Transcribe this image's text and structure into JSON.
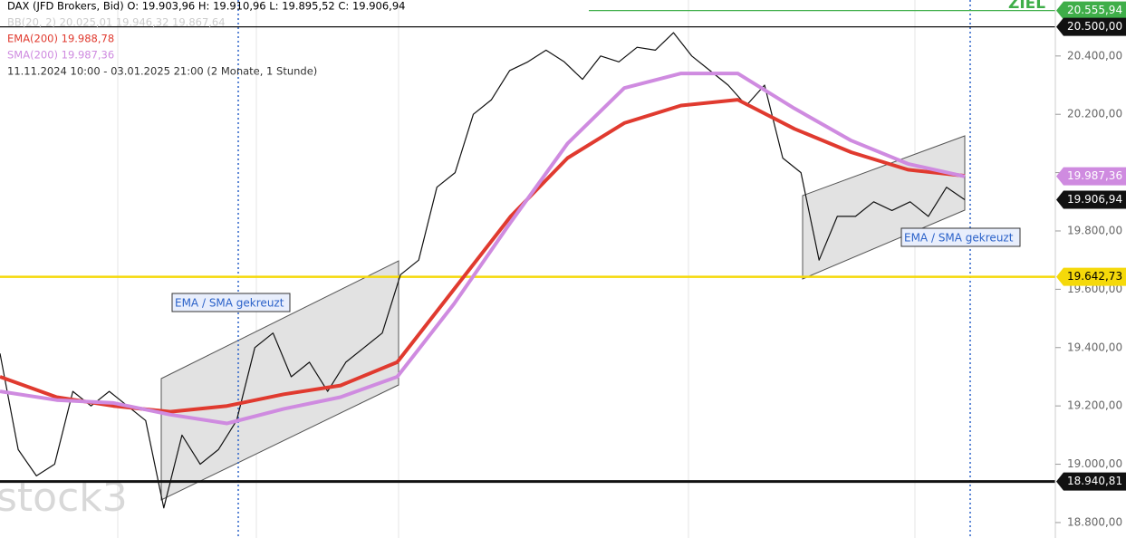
{
  "chart_data": {
    "type": "line",
    "header": {
      "instrument": "DAX (JFD Brokers, Bid)  O: 19.903,96  H: 19.910,96  L: 19.895,52  C: 19.906,94",
      "bb": "BB(20, 2)  20.025,01  19.946,32  19.867,64",
      "ema": "EMA(200)  19.988,78",
      "sma": "SMA(200)  19.987,36",
      "period": "11.11.2024 10:00 - 03.01.2025 21:00   (2 Monate, 1 Stunde)"
    },
    "annotations": [
      "EMA / SMA gekreuzt",
      "EMA / SMA gekreuzt",
      "ZIEL"
    ],
    "watermark": "stock3",
    "ylim": [
      18747,
      20592
    ],
    "yticks": [
      {
        "value": 20400,
        "label": "20.400,00"
      },
      {
        "value": 20200,
        "label": "20.200,00"
      },
      {
        "value": 20000,
        "label": "20.000,00"
      },
      {
        "value": 19800,
        "label": "19.800,00"
      },
      {
        "value": 19600,
        "label": "19.600,00"
      },
      {
        "value": 19400,
        "label": "19.400,00"
      },
      {
        "value": 19200,
        "label": "19.200,00"
      },
      {
        "value": 19000,
        "label": "19.000,00"
      },
      {
        "value": 18800,
        "label": "18.800,00"
      }
    ],
    "series": [
      {
        "name": "DAX",
        "color": "#111111",
        "values": [
          19380,
          19050,
          18960,
          19000,
          19250,
          19200,
          19250,
          19200,
          19150,
          18850,
          19100,
          19000,
          19050,
          19150,
          19400,
          19450,
          19300,
          19350,
          19250,
          19350,
          19400,
          19450,
          19650,
          19700,
          19950,
          20000,
          20200,
          20250,
          20350,
          20380,
          20420,
          20380,
          20320,
          20400,
          20380,
          20430,
          20420,
          20480,
          20400,
          20350,
          20300,
          20230,
          20300,
          20050,
          20000,
          19700,
          19850,
          19850,
          19900,
          19870,
          19900,
          19850,
          19950,
          19907
        ]
      },
      {
        "name": "EMA(200)",
        "color": "#e03a2f",
        "values": [
          19300,
          19230,
          19200,
          19180,
          19200,
          19240,
          19270,
          19350,
          19600,
          19850,
          20050,
          20170,
          20230,
          20250,
          20150,
          20070,
          20010,
          19989
        ]
      },
      {
        "name": "SMA(200)",
        "color": "#cf8be0",
        "values": [
          19250,
          19220,
          19210,
          19170,
          19140,
          19190,
          19230,
          19300,
          19550,
          19830,
          20100,
          20290,
          20340,
          20340,
          20220,
          20110,
          20030,
          19987
        ]
      }
    ],
    "levels": [
      {
        "value": 20555.94,
        "label": "20.555,94",
        "color": "#3fae49"
      },
      {
        "value": 20500,
        "label": "20.500,00",
        "color": "#111111"
      },
      {
        "value": 19987.36,
        "label": "19.987,36",
        "color": "#cf8be0"
      },
      {
        "value": 19906.94,
        "label": "19.906,94",
        "color": "#111111"
      },
      {
        "value": 19642.73,
        "label": "19.642,73",
        "color": "#f5d90a"
      },
      {
        "value": 18940.81,
        "label": "18.940,81",
        "color": "#111111"
      }
    ]
  }
}
